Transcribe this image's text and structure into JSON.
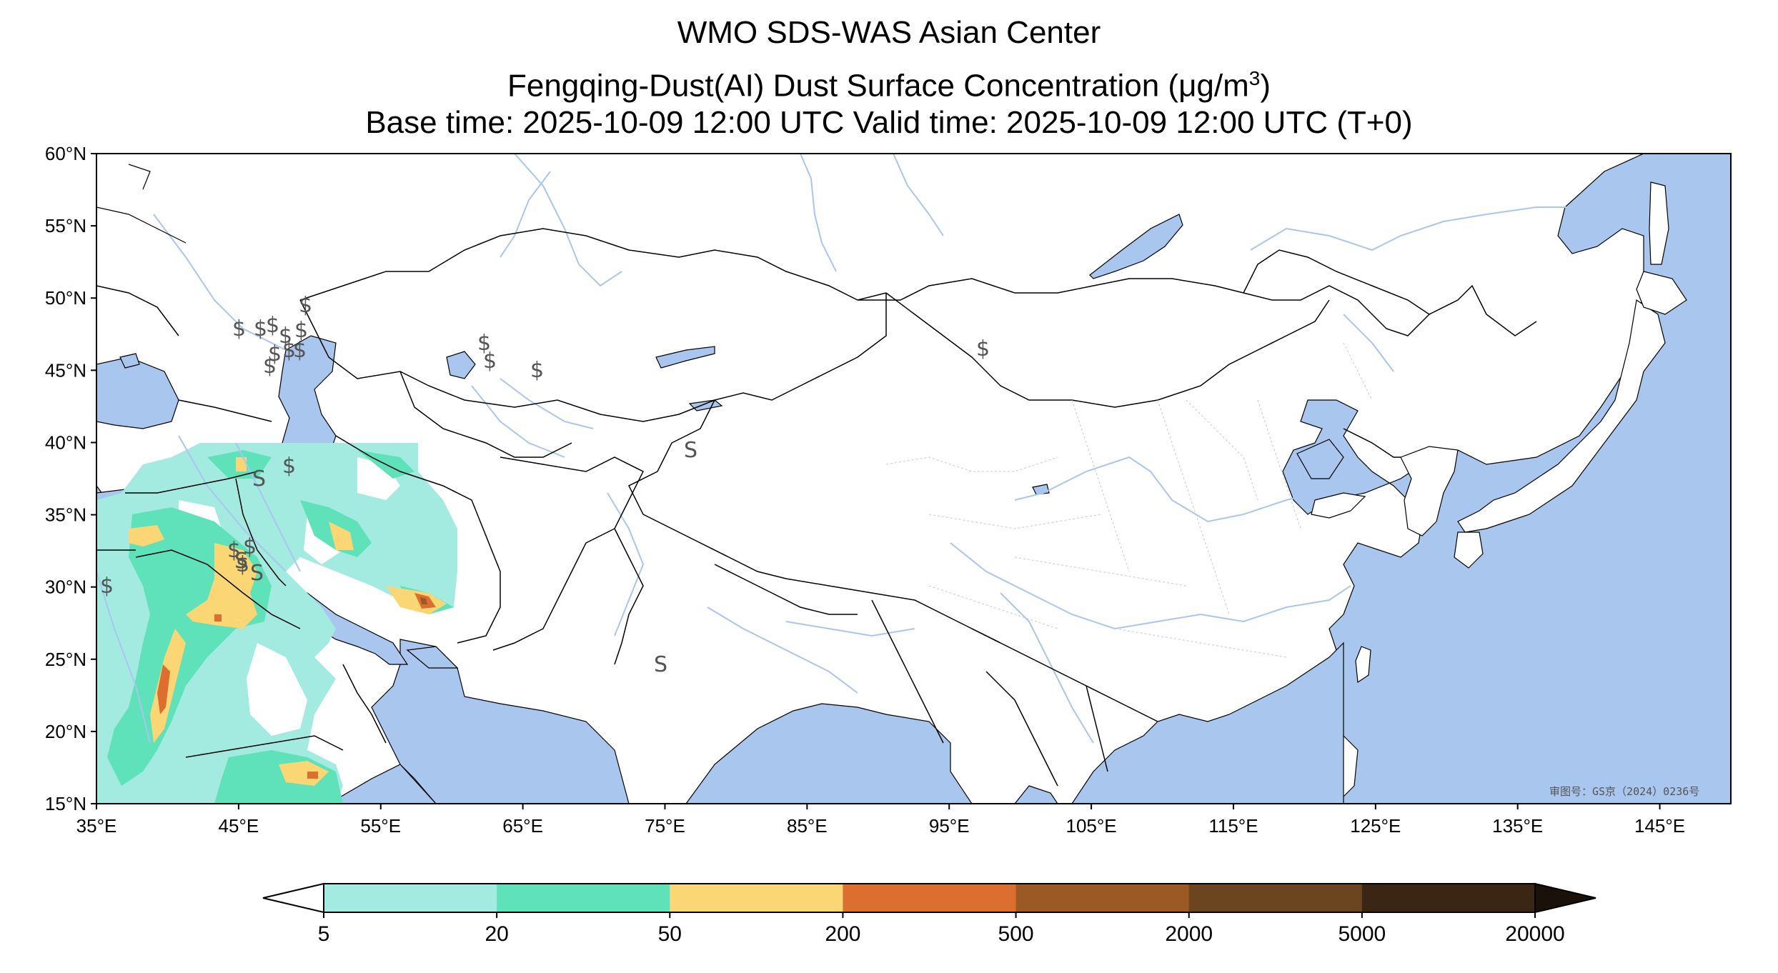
{
  "title": {
    "line1": "WMO SDS-WAS Asian Center",
    "line2_prefix": "Fengqing-Dust(AI) Dust Surface Concentration (",
    "line2_unit_mu": "μ",
    "line2_unit_rest": "g/m",
    "line2_unit_exp": "3",
    "line2_suffix": ")",
    "line3": "Base time: 2025-10-09 12:00 UTC Valid time: 2025-10-09 12:00 UTC (T+0)"
  },
  "map": {
    "projection": "plate-carree",
    "lon_range": [
      35,
      150
    ],
    "lat_range": [
      15,
      60
    ],
    "lon_ticks": [
      "35°E",
      "45°E",
      "55°E",
      "65°E",
      "75°E",
      "85°E",
      "95°E",
      "105°E",
      "115°E",
      "125°E",
      "135°E",
      "145°E"
    ],
    "lat_ticks": [
      "60°N",
      "55°N",
      "50°N",
      "45°N",
      "40°N",
      "35°N",
      "30°N",
      "25°N",
      "20°N",
      "15°N"
    ],
    "ocean_color": "#a9c6ee",
    "land_color": "#ffffff",
    "river_color": "#a9c6ee",
    "stamp": "审图号：GS京（2024）0236号"
  },
  "colorbar": {
    "labels": [
      "5",
      "20",
      "50",
      "200",
      "500",
      "2000",
      "5000",
      "20000"
    ],
    "colors": [
      "#a3ebe0",
      "#5fe1b9",
      "#fad774",
      "#dc6f2f",
      "#9b5a25",
      "#6b4520",
      "#3b2616"
    ],
    "extend_low_color": "#ffffff",
    "extend_high_color": "#1a120a"
  }
}
